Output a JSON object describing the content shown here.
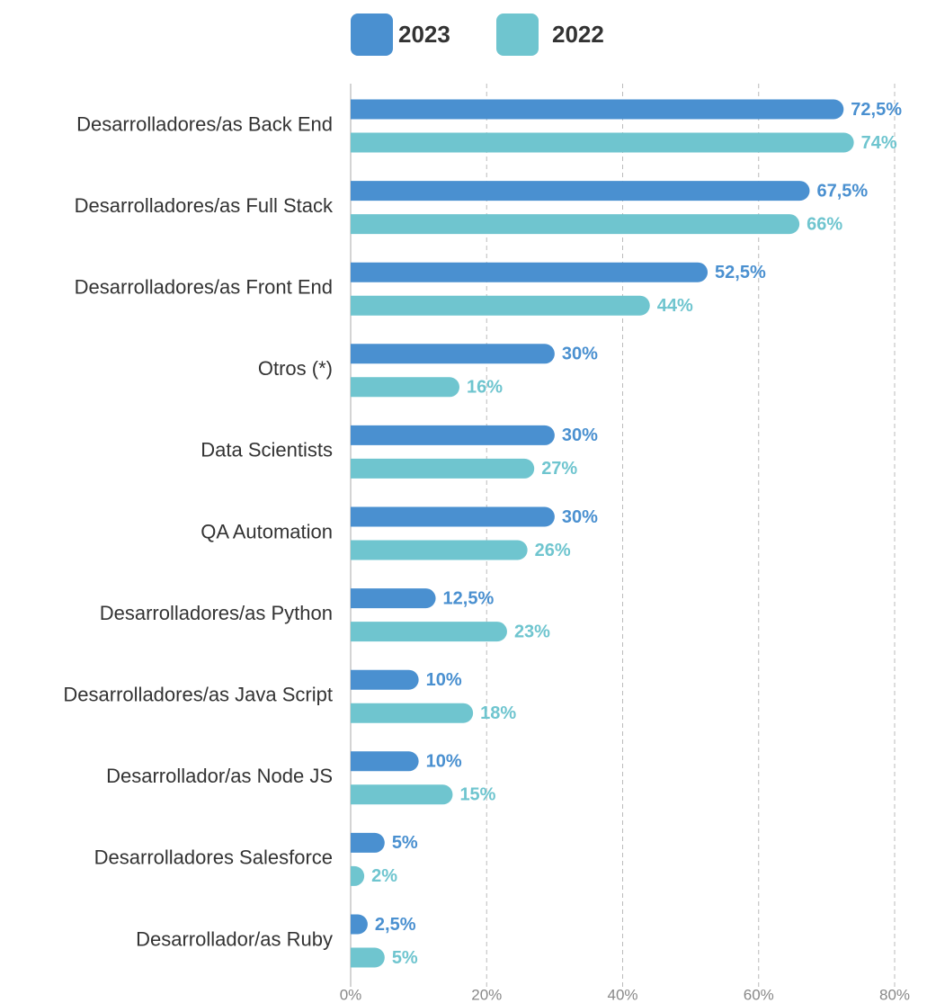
{
  "chart_data": {
    "type": "bar",
    "orientation": "horizontal",
    "categories": [
      "Desarrolladores/as Back End",
      "Desarrolladores/as Full Stack",
      "Desarrolladores/as Front End",
      "Otros (*)",
      "Data Scientists",
      "QA Automation",
      "Desarrolladores/as Python",
      "Desarrolladores/as Java Script",
      "Desarrollador/as Node JS",
      "Desarrolladores Salesforce",
      "Desarrollador/as Ruby"
    ],
    "series": [
      {
        "name": "2023",
        "color": "#4a90d0",
        "values": [
          72.5,
          67.5,
          52.5,
          30,
          30,
          30,
          12.5,
          10,
          10,
          5,
          2.5
        ],
        "value_labels": [
          "72,5%",
          "67,5%",
          "52,5%",
          "30%",
          "30%",
          "30%",
          "12,5%",
          "10%",
          "10%",
          "5%",
          "2,5%"
        ]
      },
      {
        "name": "2022",
        "color": "#6fc5cf",
        "values": [
          74,
          66,
          44,
          16,
          27,
          26,
          23,
          18,
          15,
          2,
          5
        ],
        "value_labels": [
          "74%",
          "66%",
          "44%",
          "16%",
          "27%",
          "26%",
          "23%",
          "18%",
          "15%",
          "2%",
          "5%"
        ]
      }
    ],
    "xlim": [
      0,
      80
    ],
    "xticks": [
      {
        "value": 0,
        "label": "0%"
      },
      {
        "value": 20,
        "label": "20%"
      },
      {
        "value": 40,
        "label": "40%"
      },
      {
        "value": 60,
        "label": "60%"
      },
      {
        "value": 80,
        "label": "80%"
      }
    ],
    "grid": true,
    "legend": "top"
  }
}
